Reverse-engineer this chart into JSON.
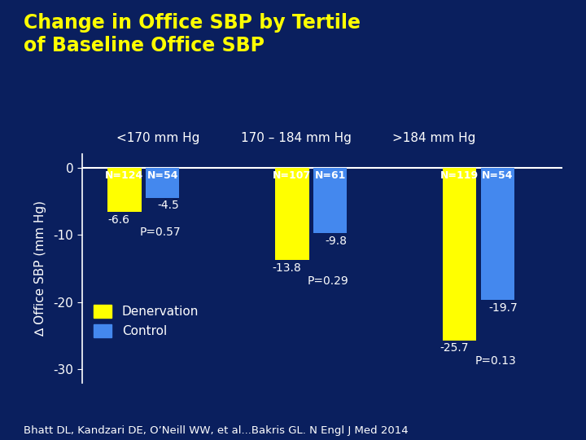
{
  "title_line1": "Change in Office SBP by Tertile",
  "title_line2": "of Baseline Office SBP",
  "ylabel": "∆ Office SBP (mm Hg)",
  "background_color": "#0a1f5e",
  "tertile_labels": [
    "<170 mm Hg",
    "170 – 184 mm Hg",
    ">184 mm Hg"
  ],
  "denervation_values": [
    -6.6,
    -13.8,
    -25.7
  ],
  "control_values": [
    -4.5,
    -9.8,
    -19.7
  ],
  "denervation_n": [
    "N=124",
    "N=107",
    "N=119"
  ],
  "control_n": [
    "N=54",
    "N=61",
    "N=54"
  ],
  "p_values": [
    "P=0.57",
    "P=0.29",
    "P=0.13"
  ],
  "denervation_color": "#ffff00",
  "control_color": "#4488ee",
  "ylim": [
    -32,
    2
  ],
  "yticks": [
    0,
    -10,
    -20,
    -30
  ],
  "bar_width": 0.3,
  "group_centers": [
    1.0,
    2.5,
    4.0
  ],
  "xlim": [
    0.45,
    4.75
  ],
  "title_color": "#ffff00",
  "tick_color": "white",
  "label_color": "white",
  "tertile_label_color": "white",
  "value_label_color": "white",
  "p_value_color": "white",
  "n_label_color": "white",
  "legend_labels": [
    "Denervation",
    "Control"
  ],
  "citation": "Bhatt DL, Kandzari DE, O’Neill WW, et al...Bakris GL. N Engl J Med 2014",
  "title_fontsize": 17,
  "axis_label_fontsize": 11,
  "tick_fontsize": 11,
  "bar_value_fontsize": 10,
  "n_label_fontsize": 9,
  "p_value_fontsize": 10,
  "tertile_fontsize": 11,
  "legend_fontsize": 11,
  "citation_fontsize": 9.5
}
